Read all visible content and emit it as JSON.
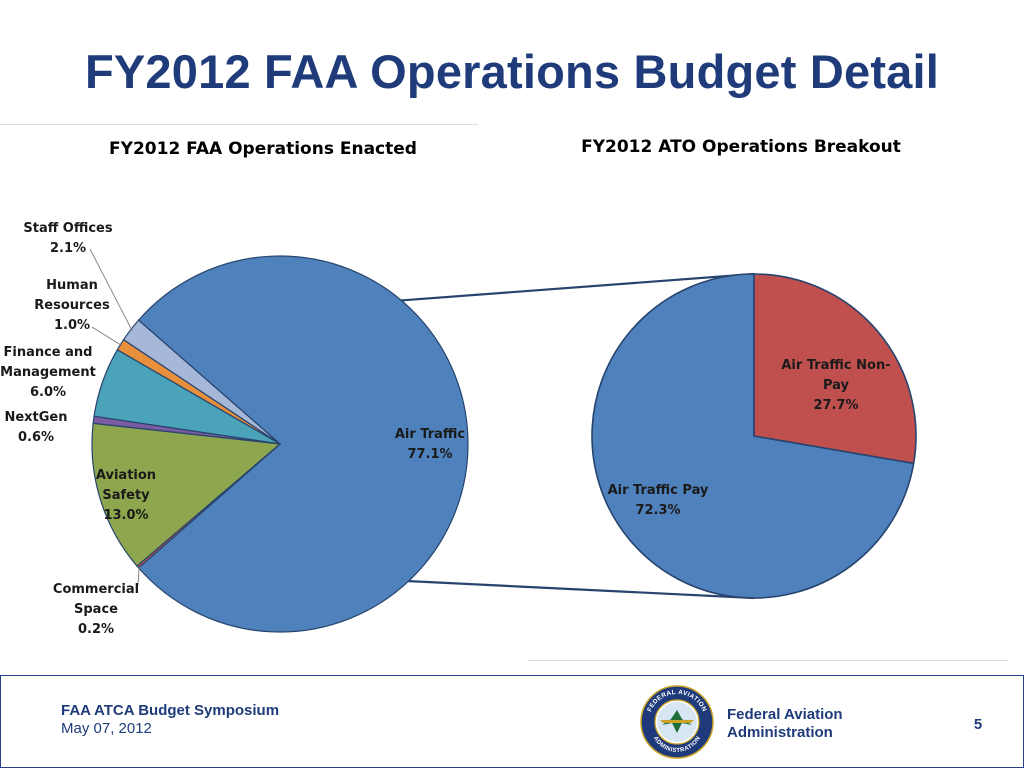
{
  "slide": {
    "title": "FY2012 FAA Operations Budget Detail"
  },
  "colors": {
    "title": "#1f3b7a",
    "outline": "#27446e"
  },
  "chart_data": [
    {
      "type": "pie",
      "title": "FY2012 FAA Operations Enacted",
      "unit": "%",
      "slices": [
        {
          "id": "air-traffic",
          "label": "Air Traffic",
          "value": 77.1,
          "display": "77.1%",
          "color": "#4f81bd"
        },
        {
          "id": "staff-offices",
          "label": "Staff Offices",
          "value": 2.1,
          "display": "2.1%",
          "color": "#a5b8da"
        },
        {
          "id": "human-resources",
          "label": "Human Resources",
          "value": 1.0,
          "display": "1.0%",
          "color": "#e88f3c"
        },
        {
          "id": "finance-management",
          "label": "Finance and Management",
          "value": 6.0,
          "display": "6.0%",
          "color": "#4aa3b8"
        },
        {
          "id": "nextgen",
          "label": "NextGen",
          "value": 0.6,
          "display": "0.6%",
          "color": "#7a5ca3"
        },
        {
          "id": "aviation-safety",
          "label": "Aviation Safety",
          "value": 13.0,
          "display": "13.0%",
          "color": "#8ea64d"
        },
        {
          "id": "commercial-space",
          "label": "Commercial Space",
          "value": 0.2,
          "display": "0.2%",
          "color": "#c0504d"
        }
      ],
      "label_lines": {
        "staff-offices": [
          "Staff Offices"
        ],
        "human-resources": [
          "Human",
          "Resources"
        ],
        "finance-management": [
          "Finance and",
          "Management"
        ],
        "nextgen": [
          "NextGen"
        ],
        "aviation-safety": [
          "Aviation",
          "Safety"
        ],
        "commercial-space": [
          "Commercial",
          "Space"
        ],
        "air-traffic": [
          "Air Traffic"
        ]
      }
    },
    {
      "type": "pie",
      "title": "FY2012 ATO Operations Breakout",
      "unit": "%",
      "breakout_of": "air-traffic",
      "slices": [
        {
          "id": "air-traffic-non-pay",
          "label": "Air Traffic Non-Pay",
          "value": 27.7,
          "display": "27.7%",
          "color": "#c0504d"
        },
        {
          "id": "air-traffic-pay",
          "label": "Air Traffic Pay",
          "value": 72.3,
          "display": "72.3%",
          "color": "#4f81bd"
        }
      ],
      "label_lines": {
        "air-traffic-non-pay": [
          "Air Traffic Non-",
          "Pay"
        ],
        "air-traffic-pay": [
          "Air Traffic Pay"
        ]
      }
    }
  ],
  "footer": {
    "symposium": "FAA ATCA Budget Symposium",
    "date": "May 07, 2012",
    "agency_line1": "Federal Aviation",
    "agency_line2": "Administration",
    "page_number": "5",
    "seal_text_top": "FEDERAL AVIATION",
    "seal_text_bottom": "ADMINISTRATION"
  }
}
